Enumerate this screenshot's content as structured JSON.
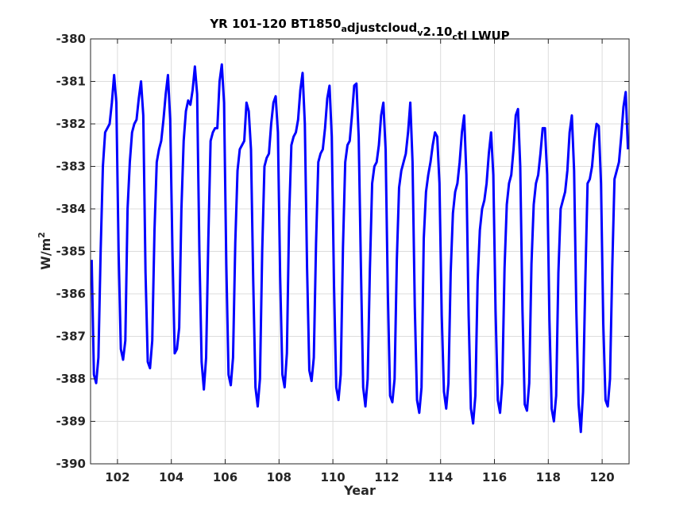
{
  "chart_data": {
    "type": "line",
    "title_parts": [
      {
        "text": "YR 101-120 BT1850",
        "sub": false
      },
      {
        "text": "a",
        "sub": true
      },
      {
        "text": "djustcloud",
        "sub": false
      },
      {
        "text": "v",
        "sub": true
      },
      {
        "text": "2.10",
        "sub": false
      },
      {
        "text": "c",
        "sub": true
      },
      {
        "text": "tl LWUP",
        "sub": false
      }
    ],
    "xlabel": "Year",
    "ylabel": "W/m",
    "ylabel_sup": "2",
    "xlim": [
      101,
      121
    ],
    "ylim": [
      -390,
      -380
    ],
    "xticks": [
      102,
      104,
      106,
      108,
      110,
      112,
      114,
      116,
      118,
      120
    ],
    "yticks": [
      -390,
      -389,
      -388,
      -387,
      -386,
      -385,
      -384,
      -383,
      -382,
      -381,
      -380
    ],
    "grid": true,
    "line_color": "#0000ff",
    "cycle_start_year": 101,
    "monthly_shape": [
      -387.4,
      -386.9,
      -385.6,
      -384.2,
      -383.1,
      -382.4,
      -382.0,
      -381.6,
      -381.2,
      -383.8,
      -386.6,
      -387.7
    ],
    "yearly_offset": [
      -0.1,
      0.2,
      0.05,
      0.3,
      0.3,
      -0.3,
      -0.4,
      0.05,
      -0.15,
      -0.15,
      -0.25,
      -0.7,
      -0.55,
      -0.85,
      -0.65,
      -0.45,
      -0.55,
      -0.5,
      -0.6,
      -0.35
    ],
    "series": [
      {
        "values": [
          -385.2,
          -387.9,
          -388.1,
          -387.5,
          -385.0,
          -383.0,
          -382.2,
          -382.1,
          -382.0,
          -381.5,
          -380.85,
          -381.5,
          -385.0,
          -387.3,
          -387.55,
          -387.1,
          -384.0,
          -382.9,
          -382.2,
          -382.0,
          -381.9,
          -381.4,
          -381.0,
          -381.8,
          -385.5,
          -387.6,
          -387.75,
          -387.1,
          -384.5,
          -382.9,
          -382.6,
          -382.4,
          -381.9,
          -381.3,
          -380.85,
          -381.9,
          -385.0,
          -387.4,
          -387.3,
          -386.8,
          -384.0,
          -382.4,
          -381.7,
          -381.45,
          -381.55,
          -381.2,
          -380.65,
          -381.3,
          -385.0,
          -387.6,
          -388.25,
          -387.5,
          -384.7,
          -382.4,
          -382.2,
          -382.1,
          -382.1,
          -381.0,
          -380.6,
          -381.5,
          -385.3,
          -387.9,
          -388.15,
          -387.5,
          -384.8,
          -383.1,
          -382.6,
          -382.5,
          -382.4,
          -381.5,
          -381.7,
          -382.6,
          -385.7,
          -388.2,
          -388.65,
          -388.0,
          -385.0,
          -383.0,
          -382.8,
          -382.7,
          -382.0,
          -381.5,
          -381.35,
          -382.2,
          -385.6,
          -387.9,
          -388.2,
          -387.4,
          -384.2,
          -382.5,
          -382.3,
          -382.2,
          -381.9,
          -381.2,
          -380.8,
          -382.0,
          -385.4,
          -387.8,
          -388.05,
          -387.5,
          -384.8,
          -382.9,
          -382.7,
          -382.6,
          -382.1,
          -381.4,
          -381.1,
          -382.3,
          -385.8,
          -388.2,
          -388.5,
          -387.9,
          -384.9,
          -382.9,
          -382.5,
          -382.4,
          -381.8,
          -381.1,
          -381.05,
          -382.3,
          -385.4,
          -388.2,
          -388.65,
          -388.0,
          -385.4,
          -383.4,
          -383.0,
          -382.9,
          -382.5,
          -381.8,
          -381.5,
          -382.6,
          -386.0,
          -388.4,
          -388.55,
          -388.0,
          -385.2,
          -383.5,
          -383.1,
          -382.9,
          -382.7,
          -382.2,
          -381.5,
          -382.9,
          -386.3,
          -388.5,
          -388.8,
          -388.2,
          -384.7,
          -383.6,
          -383.2,
          -382.9,
          -382.5,
          -382.2,
          -382.3,
          -383.4,
          -386.5,
          -388.3,
          -388.7,
          -388.1,
          -385.5,
          -384.1,
          -383.6,
          -383.4,
          -382.9,
          -382.2,
          -381.8,
          -383.2,
          -386.5,
          -388.7,
          -389.05,
          -388.4,
          -385.7,
          -384.5,
          -384.0,
          -383.8,
          -383.4,
          -382.7,
          -382.2,
          -383.2,
          -386.4,
          -388.5,
          -388.8,
          -388.1,
          -385.4,
          -383.9,
          -383.4,
          -383.2,
          -382.6,
          -381.8,
          -381.65,
          -383.0,
          -386.4,
          -388.6,
          -388.75,
          -388.1,
          -385.3,
          -383.9,
          -383.4,
          -383.2,
          -382.7,
          -382.1,
          -382.1,
          -383.2,
          -386.6,
          -388.7,
          -389.0,
          -388.4,
          -385.5,
          -384.0,
          -383.8,
          -383.6,
          -383.1,
          -382.2,
          -381.8,
          -383.1,
          -386.4,
          -388.6,
          -389.25,
          -388.3,
          -385.7,
          -383.4,
          -383.3,
          -383.0,
          -382.4,
          -382.0,
          -382.05,
          -383.4,
          -386.7,
          -388.5,
          -388.65,
          -388.0,
          -385.4,
          -383.3,
          -383.1,
          -382.9,
          -382.3,
          -381.6,
          -381.25,
          -382.6
        ]
      }
    ]
  }
}
